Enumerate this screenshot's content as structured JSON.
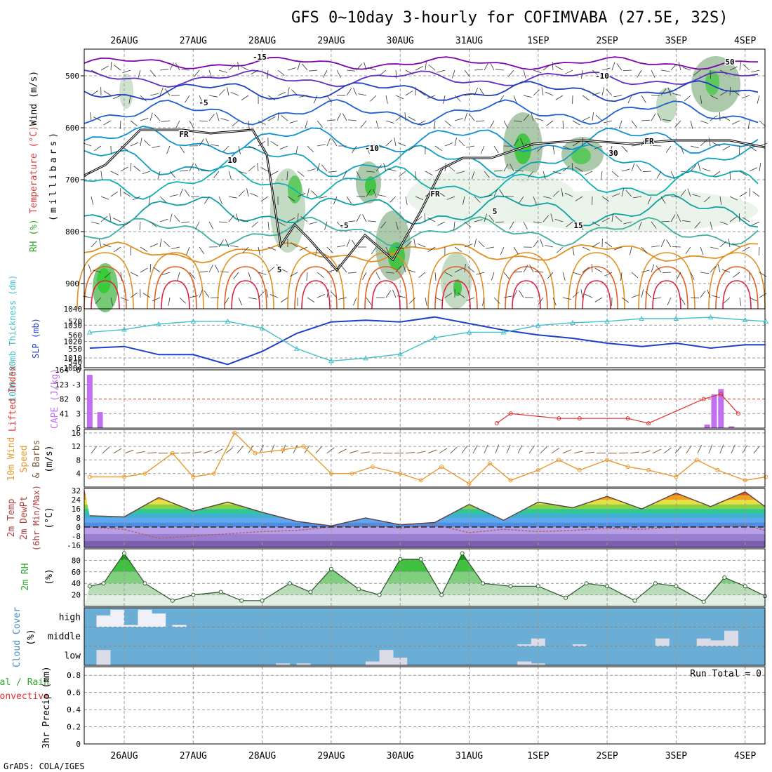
{
  "title": "GFS 0~10day 3-hourly for COFIMVABA (27.5E, 32S)",
  "credit": "GrADS: COLA/IGES",
  "dates": [
    "26AUG",
    "27AUG",
    "28AUG",
    "29AUG",
    "30AUG",
    "31AUG",
    "1SEP",
    "2SEP",
    "3SEP",
    "4SEP"
  ],
  "upper_panel": {
    "ylabel_mb": "(millibars)",
    "ylabel_legend": [
      "RH (%)",
      "Temperature (°C)",
      "Wind (m/s)"
    ],
    "ylabel_colors": [
      "#2ea82e",
      "#d04040",
      "#000000"
    ],
    "pressure_ticks": [
      500,
      600,
      700,
      800,
      900
    ],
    "contour_labels": [
      {
        "text": "-15",
        "color": "#8000b0"
      },
      {
        "text": "-10",
        "color": "#2040c0"
      },
      {
        "text": "-10",
        "color": "#2040c0"
      },
      {
        "text": "-5",
        "color": "#1090d0"
      },
      {
        "text": "-5",
        "color": "#1090d0"
      },
      {
        "text": "5",
        "color": "#10a0a0"
      },
      {
        "text": "5",
        "color": "#10a0a0"
      },
      {
        "text": "15",
        "color": "#e09020"
      },
      {
        "text": "FR",
        "color": "#000000"
      },
      {
        "text": "FR",
        "color": "#000000"
      },
      {
        "text": "FR",
        "color": "#000000"
      },
      {
        "text": "10",
        "color": "#909090"
      },
      {
        "text": "30",
        "color": "#909090"
      },
      {
        "text": "50",
        "color": "#909090"
      }
    ]
  },
  "thickness_panel": {
    "ylabel_left": "1000-500mb Thickness (dm)",
    "ylabel_right": "SLP (mb)",
    "left_ticks": [
      "570",
      "560",
      "550",
      "540"
    ],
    "right_ticks": [
      "1040",
      "1030",
      "1020",
      "1010",
      "1004"
    ]
  },
  "cape_panel": {
    "ylabel_left": "Lifted Index",
    "ylabel_right": "CAPE (J/kg)",
    "li_ticks": [
      "-6",
      "-3",
      "0",
      "3",
      "6"
    ],
    "cape_ticks": [
      "164",
      "123",
      "82",
      "41"
    ]
  },
  "wind_panel": {
    "ylabel": [
      "10m Wind",
      "Speed",
      "& Barbs",
      "(m/s)"
    ],
    "ticks": [
      "16",
      "12",
      "8",
      "4"
    ]
  },
  "temp_panel": {
    "ylabel": [
      "2m Temp",
      "2m DewPt",
      "(6hr Min/Max)",
      "(°C)"
    ],
    "ticks": [
      "32",
      "24",
      "16",
      "8",
      "0",
      "-8",
      "-16"
    ]
  },
  "rh_panel": {
    "ylabel": [
      "2m RH",
      "(%)"
    ],
    "ticks": [
      "80",
      "60",
      "40",
      "20"
    ]
  },
  "cloud_panel": {
    "ylabel": [
      "Cloud Cover",
      "(%)"
    ],
    "levels": [
      "high",
      "middle",
      "low"
    ]
  },
  "precip_panel": {
    "ylabel": [
      "Total / Rain",
      "Convective",
      "3hr Precip (mm)"
    ],
    "ticks": [
      "0.8",
      "0.6",
      "0.4",
      "0.2",
      "0"
    ],
    "run_total": "Run Total = 0"
  },
  "colors": {
    "slp": "#1f3fc8",
    "thickness": "#40c0c8",
    "cape": "#c070f0",
    "lifted_index": "#e03030",
    "wind_speed": "#e89a30",
    "barb": "#806040",
    "rh_fill": "#30c030",
    "cloud_bg": "#6aaed6",
    "cloud_fill": "#f0f0f8"
  },
  "chart_data": [
    {
      "type": "line",
      "title": "1000-500mb Thickness / SLP",
      "x_unit": "days from 26AUG 00Z",
      "series": [
        {
          "name": "SLP (mb)",
          "x": [
            -0.5,
            0,
            0.5,
            1,
            1.5,
            2,
            2.5,
            3,
            3.5,
            4,
            4.5,
            5,
            5.5,
            6,
            6.5,
            7,
            7.5,
            8,
            8.5,
            9,
            9.3
          ],
          "values": [
            1016,
            1017,
            1012,
            1012,
            1006,
            1014,
            1025,
            1032,
            1033,
            1032,
            1035,
            1031,
            1027,
            1024,
            1022,
            1019,
            1017,
            1019,
            1016,
            1018,
            1018
          ]
        },
        {
          "name": "Thickness (dm)",
          "x": [
            -0.5,
            0,
            0.5,
            1,
            1.5,
            2,
            2.5,
            3,
            3.5,
            4,
            4.5,
            5,
            5.5,
            6,
            6.5,
            7,
            7.5,
            8,
            8.5,
            9,
            9.3
          ],
          "values": [
            562,
            564,
            568,
            570,
            570,
            565,
            550,
            541,
            543,
            546,
            558,
            562,
            562,
            567,
            569,
            570,
            572,
            572,
            573,
            571,
            570
          ]
        }
      ]
    },
    {
      "type": "bar",
      "title": "CAPE / Lifted Index",
      "series": [
        {
          "name": "CAPE (J/kg)",
          "x": [
            -0.5,
            -0.35,
            8.45,
            8.55,
            8.65,
            8.8
          ],
          "values": [
            150,
            45,
            10,
            95,
            110,
            5
          ]
        },
        {
          "name": "Lifted Index",
          "x": [
            5.4,
            5.6,
            6.3,
            6.6,
            7.3,
            7.6,
            8.4,
            8.65,
            8.9
          ],
          "values": [
            5,
            3,
            4,
            4,
            4,
            5,
            0,
            -1,
            3
          ]
        }
      ]
    },
    {
      "type": "line",
      "title": "10m Wind Speed",
      "series": [
        {
          "name": "Wind Speed (m/s)",
          "x": [
            -0.5,
            0,
            0.3,
            0.7,
            1,
            1.3,
            1.6,
            1.9,
            2.3,
            2.6,
            3,
            3.3,
            3.6,
            4,
            4.3,
            4.6,
            5,
            5.3,
            5.6,
            6,
            6.3,
            6.6,
            7,
            7.3,
            7.6,
            8,
            8.3,
            8.6,
            9,
            9.3
          ],
          "values": [
            3,
            3,
            4,
            10,
            3,
            4,
            16,
            10,
            11,
            12,
            4,
            4,
            6,
            4,
            2,
            6,
            1,
            7,
            2,
            5,
            8,
            5,
            8,
            6,
            5,
            3,
            8,
            5,
            2,
            3
          ]
        }
      ]
    },
    {
      "type": "area",
      "title": "2m Temp",
      "series": [
        {
          "name": "2m Temp (°C)",
          "x": [
            -0.5,
            0,
            0.5,
            1,
            1.5,
            2,
            2.5,
            3,
            3.5,
            4,
            4.5,
            5,
            5.5,
            6,
            6.5,
            7,
            7.5,
            8,
            8.5,
            9,
            9.3
          ],
          "values": [
            10,
            9,
            26,
            14,
            22,
            13,
            5,
            1,
            8,
            2,
            4,
            20,
            6,
            22,
            17,
            27,
            16,
            30,
            18,
            31,
            18
          ]
        },
        {
          "name": "2m DewPt (°C)",
          "x": [
            -0.5,
            0,
            0.5,
            1,
            1.5,
            2,
            2.5,
            3,
            3.5,
            4,
            4.5,
            5,
            5.5,
            6,
            6.5,
            7,
            7.5,
            8,
            8.5,
            9,
            9.3
          ],
          "values": [
            0,
            -2,
            -10,
            -8,
            -6,
            -4,
            -3,
            0,
            2,
            -1,
            2,
            -5,
            -2,
            -4,
            -3,
            -1,
            -2,
            0,
            0,
            2,
            -3
          ]
        }
      ]
    },
    {
      "type": "area",
      "title": "2m RH",
      "series": [
        {
          "name": "2m RH (%)",
          "x": [
            -0.5,
            -0.3,
            0,
            0.3,
            0.7,
            1,
            1.4,
            1.7,
            2.0,
            2.4,
            2.7,
            3,
            3.4,
            3.7,
            4,
            4.3,
            4.6,
            4.9,
            5.2,
            5.6,
            6,
            6.4,
            6.7,
            7,
            7.4,
            7.7,
            8,
            8.4,
            8.7,
            9,
            9.3
          ],
          "values": [
            35,
            40,
            92,
            40,
            10,
            20,
            25,
            10,
            10,
            40,
            25,
            65,
            30,
            20,
            82,
            82,
            20,
            92,
            40,
            35,
            35,
            15,
            40,
            35,
            10,
            40,
            35,
            8,
            50,
            35,
            18
          ]
        }
      ]
    },
    {
      "type": "bar",
      "title": "Cloud Cover",
      "series": [
        {
          "name": "high (%)",
          "x": [
            -0.3,
            -0.1,
            0.1,
            0.3,
            0.5,
            0.8
          ],
          "values": [
            60,
            90,
            10,
            90,
            70,
            10
          ]
        },
        {
          "name": "middle (%)",
          "x": [
            5.8,
            6.0,
            6.6,
            7.8,
            8.4,
            8.6,
            8.8
          ],
          "values": [
            10,
            40,
            10,
            40,
            40,
            30,
            80
          ]
        },
        {
          "name": "low (%)",
          "x": [
            -0.3,
            2.3,
            2.6,
            3.6,
            3.8,
            4.0,
            5.8,
            6.0
          ],
          "values": [
            80,
            10,
            10,
            20,
            80,
            40,
            20,
            10
          ]
        }
      ]
    },
    {
      "type": "bar",
      "title": "3hr Precip",
      "ylim": [
        0,
        0.9
      ],
      "series": [
        {
          "name": "3hr Precip (mm)",
          "x": [],
          "values": []
        }
      ]
    }
  ]
}
